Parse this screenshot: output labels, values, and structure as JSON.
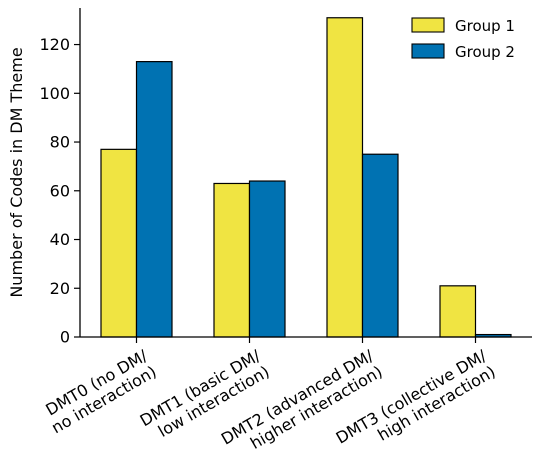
{
  "chart_data": {
    "type": "bar",
    "categories": [
      [
        "DMT0 (no DM/",
        "no interaction)"
      ],
      [
        "DMT1 (basic DM/",
        "low interaction)"
      ],
      [
        "DMT2 (advanced DM/",
        "higher interaction)"
      ],
      [
        "DMT3 (collective DM/",
        "high interaction)"
      ]
    ],
    "series": [
      {
        "name": "Group 1",
        "values": [
          77,
          63,
          131,
          21
        ],
        "color": "#f0e442"
      },
      {
        "name": "Group 2",
        "values": [
          113,
          64,
          75,
          1
        ],
        "color": "#0072b2"
      }
    ],
    "ylabel": "Number of Codes in DM Theme",
    "xlabel": "",
    "ylim": [
      0,
      135
    ],
    "yticks": [
      0,
      20,
      40,
      60,
      80,
      100,
      120
    ],
    "grid": false,
    "legend_position": "top-right"
  }
}
